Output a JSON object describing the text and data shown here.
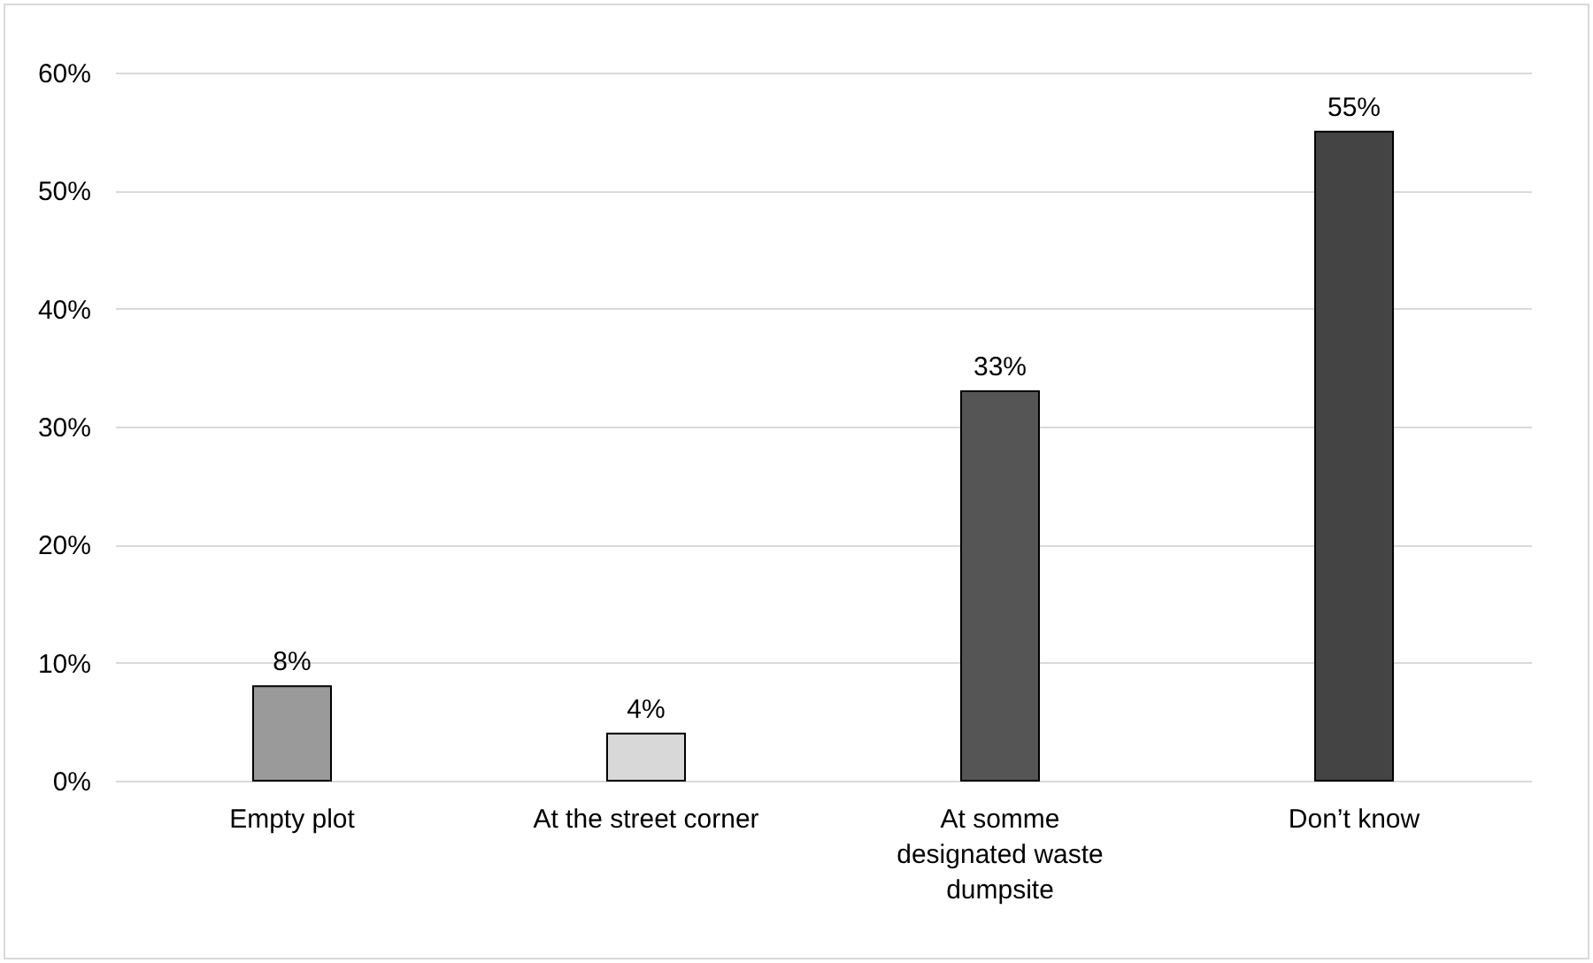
{
  "chart_data": {
    "type": "bar",
    "categories": [
      "Empty plot",
      "At the street corner",
      "At somme designated waste dumpsite",
      "Don’t know"
    ],
    "values": [
      8,
      4,
      33,
      55
    ],
    "value_labels": [
      "8%",
      "4%",
      "33%",
      "55%"
    ],
    "colors": [
      "#9a9a9a",
      "#d8d8d8",
      "#555555",
      "#444444"
    ],
    "ylim": [
      0,
      60
    ],
    "yticks": [
      {
        "value": 0,
        "label": "0%"
      },
      {
        "value": 10,
        "label": "10%"
      },
      {
        "value": 20,
        "label": "20%"
      },
      {
        "value": 30,
        "label": "30%"
      },
      {
        "value": 40,
        "label": "40%"
      },
      {
        "value": 50,
        "label": "50%"
      },
      {
        "value": 60,
        "label": "60%"
      }
    ],
    "grid": "y"
  }
}
